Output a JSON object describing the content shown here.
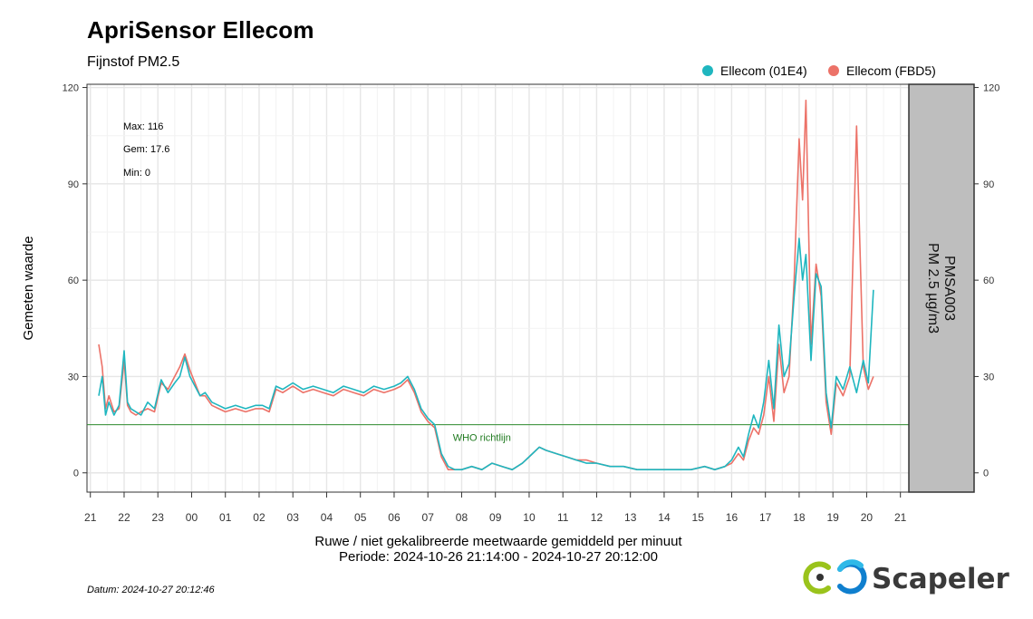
{
  "header": {
    "title": "ApriSensor  Ellecom",
    "subtitle": "Fijnstof PM2.5"
  },
  "footer": {
    "datum": "Datum: 2024-10-27 20:12:46",
    "logo_text": "Scapeler"
  },
  "colors": {
    "series_a": "#1fb6bf",
    "series_b": "#ec7268",
    "who_line": "#2e8b2e",
    "strip_bg": "#bebebe"
  },
  "chart_data": {
    "type": "line",
    "title": "Fijnstof PM2.5",
    "ylabel": "Gemeten waarde",
    "xlabel_line1": "Ruwe / niet gekalibreerde meetwaarde gemiddeld per minuut",
    "xlabel_line2": "Periode: 2024-10-26 21:14:00 - 2024-10-27 20:12:00",
    "ylim": [
      -6,
      121
    ],
    "xlim": [
      -0.1,
      24.25
    ],
    "y_ticks": [
      0,
      30,
      60,
      90,
      120
    ],
    "x_ticks": [
      {
        "hour": 0,
        "label": "21"
      },
      {
        "hour": 1,
        "label": "22"
      },
      {
        "hour": 2,
        "label": "23"
      },
      {
        "hour": 3,
        "label": "00"
      },
      {
        "hour": 4,
        "label": "01"
      },
      {
        "hour": 5,
        "label": "02"
      },
      {
        "hour": 6,
        "label": "03"
      },
      {
        "hour": 7,
        "label": "04"
      },
      {
        "hour": 8,
        "label": "05"
      },
      {
        "hour": 9,
        "label": "06"
      },
      {
        "hour": 10,
        "label": "07"
      },
      {
        "hour": 11,
        "label": "08"
      },
      {
        "hour": 12,
        "label": "09"
      },
      {
        "hour": 13,
        "label": "10"
      },
      {
        "hour": 14,
        "label": "11"
      },
      {
        "hour": 15,
        "label": "12"
      },
      {
        "hour": 16,
        "label": "13"
      },
      {
        "hour": 17,
        "label": "14"
      },
      {
        "hour": 18,
        "label": "15"
      },
      {
        "hour": 19,
        "label": "16"
      },
      {
        "hour": 20,
        "label": "17"
      },
      {
        "hour": 21,
        "label": "18"
      },
      {
        "hour": 22,
        "label": "19"
      },
      {
        "hour": 23,
        "label": "20"
      },
      {
        "hour": 24,
        "label": "21"
      }
    ],
    "strip_label_1": "PMSA003",
    "strip_label_2": "PM 2.5 µg/m3",
    "stats": {
      "max": "Max: 116",
      "gem": "Gem: 17.6",
      "min": "Min: 0"
    },
    "reference_line": {
      "value": 15,
      "label": "WHO richtlijn"
    },
    "series": [
      {
        "name": "Ellecom (01E4)",
        "color": "#1fb6bf",
        "x": [
          0.25,
          0.35,
          0.45,
          0.55,
          0.7,
          0.85,
          1.0,
          1.1,
          1.2,
          1.35,
          1.5,
          1.7,
          1.9,
          2.1,
          2.3,
          2.5,
          2.65,
          2.8,
          2.95,
          3.1,
          3.25,
          3.4,
          3.6,
          3.8,
          4.0,
          4.3,
          4.6,
          4.9,
          5.1,
          5.3,
          5.5,
          5.7,
          6.0,
          6.3,
          6.6,
          6.9,
          7.2,
          7.5,
          7.8,
          8.1,
          8.4,
          8.7,
          9.0,
          9.2,
          9.4,
          9.6,
          9.8,
          10.0,
          10.2,
          10.4,
          10.6,
          10.8,
          11.0,
          11.3,
          11.6,
          11.9,
          12.2,
          12.5,
          12.8,
          13.1,
          13.3,
          13.5,
          13.8,
          14.1,
          14.4,
          14.7,
          15.0,
          15.4,
          15.8,
          16.2,
          16.6,
          17.0,
          17.4,
          17.8,
          18.2,
          18.5,
          18.8,
          19.0,
          19.2,
          19.35,
          19.5,
          19.65,
          19.8,
          19.95,
          20.1,
          20.25,
          20.4,
          20.55,
          20.7,
          20.85,
          21.0,
          21.1,
          21.2,
          21.35,
          21.5,
          21.65,
          21.8,
          21.95,
          22.1,
          22.3,
          22.5,
          22.7,
          22.9,
          23.05,
          23.2
        ],
        "values": [
          24,
          30,
          18,
          22,
          18,
          21,
          38,
          22,
          20,
          19,
          18,
          22,
          20,
          29,
          25,
          28,
          30,
          36,
          30,
          27,
          24,
          25,
          22,
          21,
          20,
          21,
          20,
          21,
          21,
          20,
          27,
          26,
          28,
          26,
          27,
          26,
          25,
          27,
          26,
          25,
          27,
          26,
          27,
          28,
          30,
          26,
          20,
          17,
          15,
          6,
          2,
          1,
          1,
          2,
          1,
          3,
          2,
          1,
          3,
          6,
          8,
          7,
          6,
          5,
          4,
          3,
          3,
          2,
          2,
          1,
          1,
          1,
          1,
          1,
          2,
          1,
          2,
          4,
          8,
          5,
          12,
          18,
          14,
          22,
          35,
          20,
          46,
          30,
          34,
          55,
          73,
          60,
          68,
          35,
          62,
          58,
          25,
          14,
          30,
          26,
          33,
          25,
          35,
          28,
          57
        ]
      },
      {
        "name": "Ellecom (FBD5)",
        "color": "#ec7268",
        "x": [
          0.25,
          0.35,
          0.45,
          0.55,
          0.7,
          0.85,
          1.0,
          1.1,
          1.2,
          1.35,
          1.5,
          1.7,
          1.9,
          2.1,
          2.3,
          2.5,
          2.65,
          2.8,
          2.95,
          3.1,
          3.25,
          3.4,
          3.6,
          3.8,
          4.0,
          4.3,
          4.6,
          4.9,
          5.1,
          5.3,
          5.5,
          5.7,
          6.0,
          6.3,
          6.6,
          6.9,
          7.2,
          7.5,
          7.8,
          8.1,
          8.4,
          8.7,
          9.0,
          9.2,
          9.4,
          9.6,
          9.8,
          10.0,
          10.2,
          10.4,
          10.6,
          10.8,
          11.0,
          11.3,
          11.6,
          11.9,
          12.2,
          12.5,
          12.8,
          13.1,
          13.3,
          13.5,
          13.8,
          14.1,
          14.4,
          14.7,
          15.0,
          15.4,
          15.8,
          16.2,
          16.6,
          17.0,
          17.4,
          17.8,
          18.2,
          18.5,
          18.8,
          19.0,
          19.2,
          19.35,
          19.5,
          19.65,
          19.8,
          19.95,
          20.1,
          20.25,
          20.4,
          20.55,
          20.7,
          20.85,
          21.0,
          21.1,
          21.2,
          21.35,
          21.5,
          21.65,
          21.8,
          21.95,
          22.1,
          22.3,
          22.5,
          22.7,
          22.9,
          23.05,
          23.2
        ],
        "values": [
          40,
          33,
          20,
          24,
          19,
          20,
          35,
          21,
          19,
          18,
          19,
          20,
          19,
          28,
          26,
          30,
          33,
          37,
          32,
          28,
          24,
          24,
          21,
          20,
          19,
          20,
          19,
          20,
          20,
          19,
          26,
          25,
          27,
          25,
          26,
          25,
          24,
          26,
          25,
          24,
          26,
          25,
          26,
          27,
          29,
          25,
          19,
          16,
          14,
          5,
          1,
          1,
          1,
          2,
          1,
          3,
          2,
          1,
          3,
          6,
          8,
          7,
          6,
          5,
          4,
          4,
          3,
          2,
          2,
          1,
          1,
          1,
          1,
          1,
          2,
          1,
          2,
          3,
          6,
          4,
          10,
          14,
          12,
          18,
          30,
          16,
          40,
          25,
          30,
          60,
          104,
          85,
          116,
          40,
          65,
          55,
          22,
          12,
          28,
          24,
          30,
          108,
          33,
          26,
          30
        ]
      }
    ]
  }
}
